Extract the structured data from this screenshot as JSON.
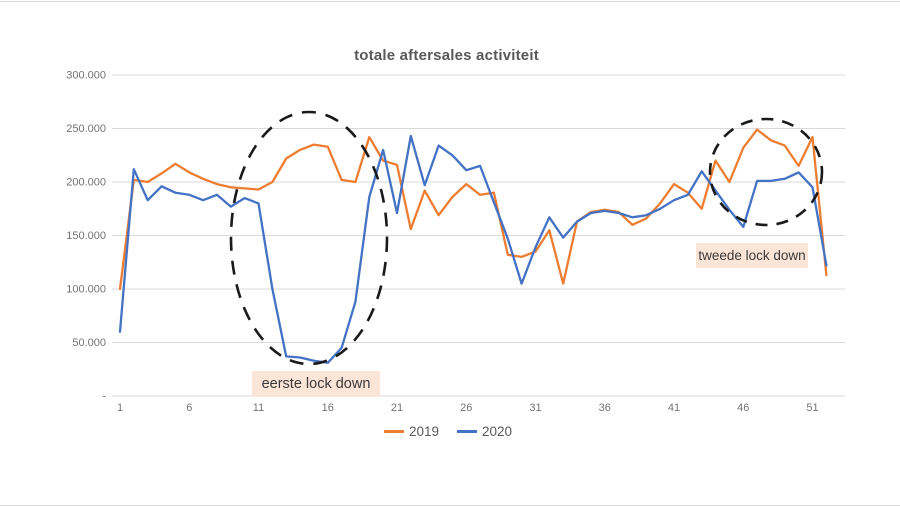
{
  "title": "totale aftersales activiteit",
  "annotations": {
    "first_lockdown": "eerste lock down",
    "second_lockdown": "tweede lock down"
  },
  "legend": [
    {
      "label": "2019",
      "color": "#ED7D31"
    },
    {
      "label": "2020",
      "color": "#4472C4"
    }
  ],
  "colors": {
    "series_2019": "#ED7D31",
    "series_2020": "#4472C4",
    "gridline": "#D9D9D9",
    "axis_text": "#737373",
    "title_text": "#595959",
    "annotation_bg": "#FBE5D6",
    "circle_stroke": "#1A1A1A"
  },
  "chart_data": {
    "type": "line",
    "title": "totale aftersales activiteit",
    "xlabel": "",
    "ylabel": "",
    "ylim": [
      0,
      300000
    ],
    "grid": "horizontal",
    "legend_position": "bottom",
    "x": [
      1,
      2,
      3,
      4,
      5,
      6,
      7,
      8,
      9,
      10,
      11,
      12,
      13,
      14,
      15,
      16,
      17,
      18,
      19,
      20,
      21,
      22,
      23,
      24,
      25,
      26,
      27,
      28,
      29,
      30,
      31,
      32,
      33,
      34,
      35,
      36,
      37,
      38,
      39,
      40,
      41,
      42,
      43,
      44,
      45,
      46,
      47,
      48,
      49,
      50,
      51,
      52
    ],
    "x_ticks": [
      1,
      6,
      11,
      16,
      21,
      26,
      31,
      36,
      41,
      46,
      51
    ],
    "y_ticks": [
      {
        "value": 0,
        "label": "-"
      },
      {
        "value": 50000,
        "label": "50.000"
      },
      {
        "value": 100000,
        "label": "100.000"
      },
      {
        "value": 150000,
        "label": "150.000"
      },
      {
        "value": 200000,
        "label": "200.000"
      },
      {
        "value": 250000,
        "label": "250.000"
      },
      {
        "value": 300000,
        "label": "300.000"
      }
    ],
    "series": [
      {
        "name": "2019",
        "color": "#ED7D31",
        "values": [
          100000,
          202000,
          200000,
          208000,
          217000,
          209000,
          203000,
          198000,
          195000,
          194000,
          193000,
          200000,
          222000,
          230000,
          235000,
          233000,
          202000,
          200000,
          242000,
          220000,
          216000,
          156000,
          192000,
          169000,
          186000,
          198000,
          188000,
          190000,
          132000,
          130000,
          135000,
          155000,
          105000,
          163000,
          172000,
          174000,
          172000,
          160000,
          166000,
          180000,
          198000,
          190000,
          175000,
          220000,
          200000,
          232000,
          249000,
          239000,
          234000,
          215000,
          242000,
          113000
        ]
      },
      {
        "name": "2020",
        "color": "#4472C4",
        "values": [
          60000,
          212000,
          183000,
          196000,
          190000,
          188000,
          183000,
          188000,
          177000,
          185000,
          180000,
          100000,
          37000,
          36000,
          33000,
          31000,
          45000,
          88000,
          186000,
          230000,
          171000,
          243000,
          197000,
          234000,
          225000,
          211000,
          215000,
          181000,
          147000,
          105000,
          139000,
          167000,
          148000,
          163000,
          171000,
          173000,
          171000,
          167000,
          169000,
          175000,
          183000,
          188000,
          210000,
          192000,
          174000,
          158000,
          201000,
          201000,
          203000,
          209000,
          195000,
          122000
        ]
      }
    ],
    "annotations": [
      {
        "text": "eerste lock down",
        "region_weeks": [
          11,
          20
        ]
      },
      {
        "text": "tweede lock down",
        "region_weeks": [
          43,
          51
        ]
      }
    ]
  }
}
